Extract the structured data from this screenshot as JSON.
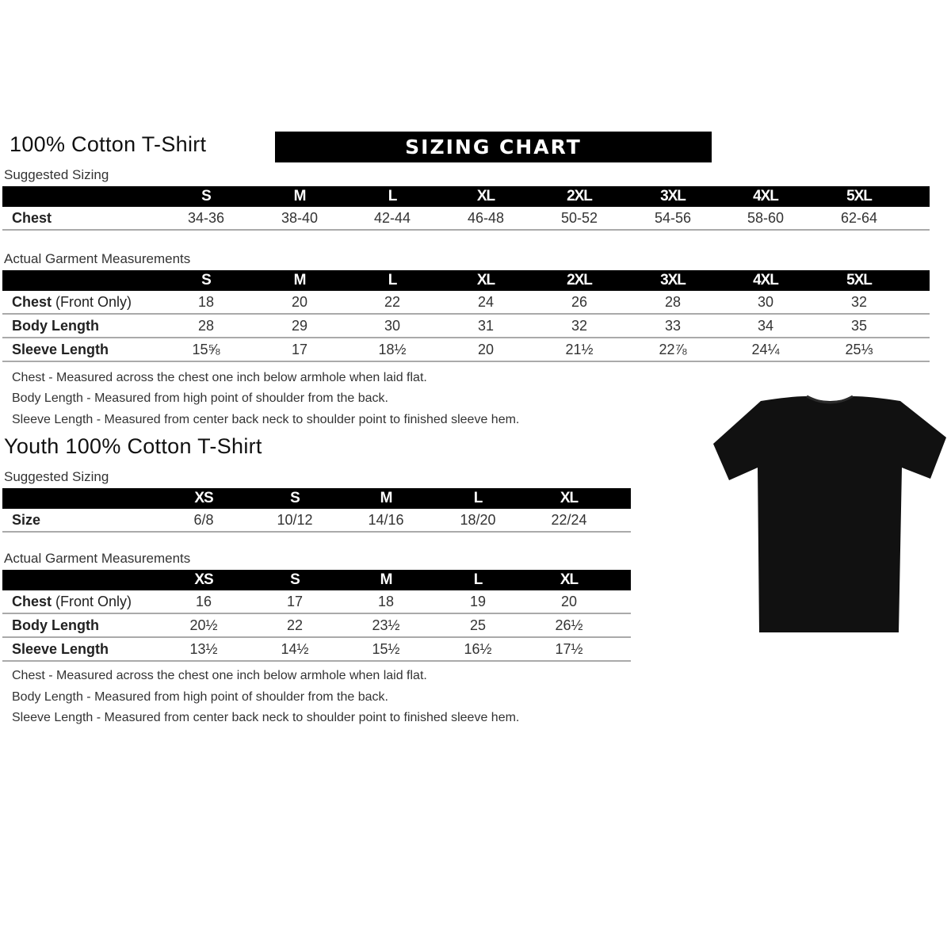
{
  "adult": {
    "title": "100% Cotton T-Shirt",
    "banner": "SIZING CHART",
    "suggested_label": "Suggested Sizing",
    "sizes": [
      "S",
      "M",
      "L",
      "XL",
      "2XL",
      "3XL",
      "4XL",
      "5XL"
    ],
    "suggested_rows": [
      {
        "label": "Chest",
        "label_extra": "",
        "values": [
          "34-36",
          "38-40",
          "42-44",
          "46-48",
          "50-52",
          "54-56",
          "58-60",
          "62-64"
        ]
      }
    ],
    "actual_label": "Actual Garment Measurements",
    "actual_rows": [
      {
        "label": "Chest",
        "label_extra": " (Front Only)",
        "values": [
          "18",
          "20",
          "22",
          "24",
          "26",
          "28",
          "30",
          "32"
        ]
      },
      {
        "label": "Body Length",
        "label_extra": "",
        "values": [
          "28",
          "29",
          "30",
          "31",
          "32",
          "33",
          "34",
          "35"
        ]
      },
      {
        "label": "Sleeve Length",
        "label_extra": "",
        "values": [
          "15⅝",
          "17",
          "18½",
          "20",
          "21½",
          "22⅞",
          "24¼",
          "25⅓"
        ]
      }
    ],
    "notes": [
      "Chest - Measured across the chest one inch below armhole when laid flat.",
      "Body Length - Measured from high point of shoulder from the back.",
      "Sleeve Length - Measured from center back neck to shoulder point to finished sleeve hem."
    ]
  },
  "youth": {
    "title": "Youth 100% Cotton T-Shirt",
    "suggested_label": "Suggested Sizing",
    "sizes": [
      "XS",
      "S",
      "M",
      "L",
      "XL"
    ],
    "suggested_rows": [
      {
        "label": "Size",
        "label_extra": "",
        "values": [
          "6/8",
          "10/12",
          "14/16",
          "18/20",
          "22/24"
        ]
      }
    ],
    "actual_label": "Actual Garment Measurements",
    "actual_rows": [
      {
        "label": "Chest",
        "label_extra": " (Front Only)",
        "values": [
          "16",
          "17",
          "18",
          "19",
          "20"
        ]
      },
      {
        "label": "Body Length",
        "label_extra": "",
        "values": [
          "20½",
          "22",
          "23½",
          "25",
          "26½"
        ]
      },
      {
        "label": "Sleeve Length",
        "label_extra": "",
        "values": [
          "13½",
          "14½",
          "15½",
          "16½",
          "17½"
        ]
      }
    ],
    "notes": [
      "Chest - Measured across the chest one inch below armhole when laid flat.",
      "Body Length - Measured from high point of shoulder from the back.",
      "Sleeve Length - Measured from center back neck to shoulder point to finished sleeve hem."
    ]
  },
  "image": {
    "icon": "black-tshirt-icon",
    "color": "#111111"
  }
}
